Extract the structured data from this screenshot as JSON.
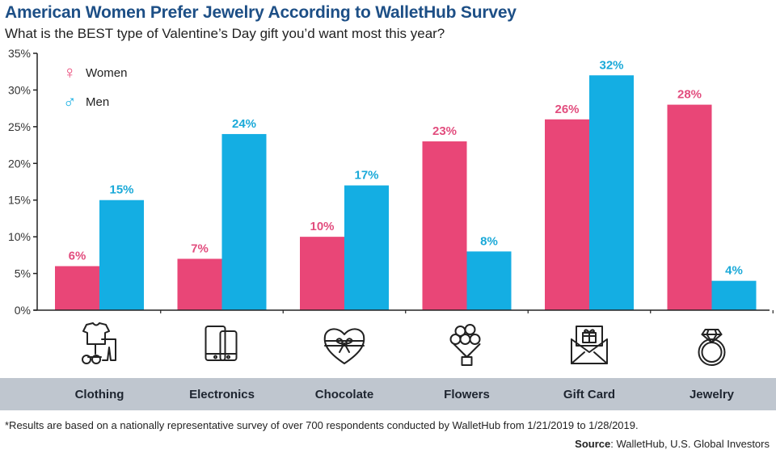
{
  "header": {
    "title": "American Women Prefer Jewelry According to WalletHub Survey",
    "subtitle": "What is the BEST type of Valentine’s Day gift you’d want most this year?"
  },
  "legend": [
    {
      "name": "Women",
      "symbol": "♀",
      "icon": "female-symbol-icon",
      "color": "#e94677"
    },
    {
      "name": "Men",
      "symbol": "♂",
      "icon": "male-symbol-icon",
      "color": "#14aee3"
    }
  ],
  "chart_data": {
    "type": "bar",
    "title": "American Women Prefer Jewelry According to WalletHub Survey",
    "subtitle": "What is the BEST type of Valentine’s Day gift you’d want most this year?",
    "categories": [
      "Clothing",
      "Electronics",
      "Chocolate",
      "Flowers",
      "Gift Card",
      "Jewelry"
    ],
    "category_icons": [
      "clothing-icon",
      "electronics-icon",
      "chocolate-heart-box-icon",
      "flower-bouquet-icon",
      "gift-card-envelope-icon",
      "diamond-ring-icon"
    ],
    "series": [
      {
        "name": "Women",
        "color": "#e94677",
        "label_color": "#e24d7e",
        "values": [
          6,
          7,
          10,
          23,
          26,
          28
        ]
      },
      {
        "name": "Men",
        "color": "#14aee3",
        "label_color": "#1aa9d8",
        "values": [
          15,
          24,
          17,
          8,
          32,
          4
        ]
      }
    ],
    "data_label_suffix": "%",
    "xlabel": "",
    "ylabel": "",
    "ylim": [
      0,
      35
    ],
    "yticks": [
      0,
      5,
      10,
      15,
      20,
      25,
      30,
      35
    ],
    "ytick_labels": [
      "0%",
      "5%",
      "10%",
      "15%",
      "20%",
      "25%",
      "30%",
      "35%"
    ],
    "grid": false,
    "legend_position": "top-left"
  },
  "footer": {
    "footnote": "*Results are based on a nationally representative survey of over 700 respondents conducted by WalletHub from 1/21/2019 to 1/28/2019.",
    "source_label": "Source",
    "source_text": ": WalletHub, U.S. Global Investors"
  }
}
